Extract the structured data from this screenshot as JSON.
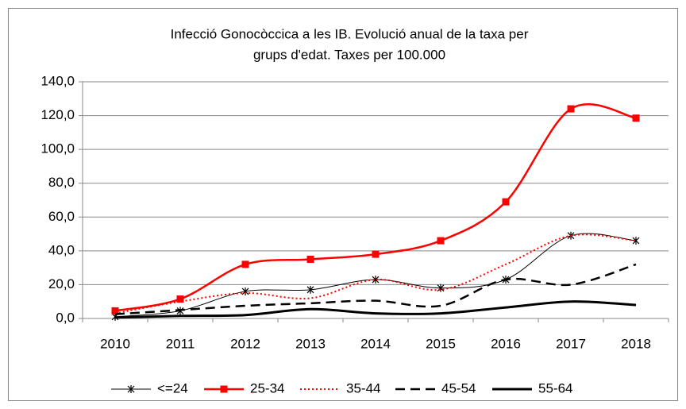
{
  "chart_data": {
    "type": "line",
    "title": [
      "Infecció Gonocòccica a les IB. Evolució anual de la taxa per",
      "grups d'edat. Taxes per 100.000"
    ],
    "categories": [
      "2010",
      "2011",
      "2012",
      "2013",
      "2014",
      "2015",
      "2016",
      "2017",
      "2018"
    ],
    "series": [
      {
        "name": "<=24",
        "color": "#000000",
        "width": 1,
        "marker": "star",
        "values": [
          1,
          4.5,
          16,
          17,
          23,
          18,
          23,
          49,
          46
        ]
      },
      {
        "name": "25-34",
        "color": "#ff0000",
        "width": 2.5,
        "marker": "square",
        "values": [
          4.5,
          11.5,
          32,
          35,
          38,
          46,
          69,
          124,
          118.5
        ]
      },
      {
        "name": "35-44",
        "color": "#ff0000",
        "width": 2,
        "dash": "dotted",
        "values": [
          3,
          10,
          15,
          12,
          23,
          17,
          32,
          49,
          46
        ]
      },
      {
        "name": "45-54",
        "color": "#000000",
        "width": 2.5,
        "dash": "dashed",
        "values": [
          2.5,
          5,
          7.5,
          9,
          10.5,
          7.5,
          23,
          20,
          32
        ]
      },
      {
        "name": "55-64",
        "color": "#000000",
        "width": 3,
        "values": [
          0.5,
          1.5,
          2,
          5.5,
          3,
          3,
          6.5,
          10,
          8
        ]
      }
    ],
    "ylim": [
      0,
      140
    ],
    "yticks": [
      {
        "value": 0,
        "label": "0,0"
      },
      {
        "value": 20,
        "label": "20,0"
      },
      {
        "value": 40,
        "label": "40,0"
      },
      {
        "value": 60,
        "label": "60,0"
      },
      {
        "value": 80,
        "label": "80,0"
      },
      {
        "value": 100,
        "label": "100,0"
      },
      {
        "value": 120,
        "label": "120,0"
      },
      {
        "value": 140,
        "label": "140,0"
      }
    ],
    "grid": true,
    "smooth": true,
    "legend": "bottom"
  }
}
